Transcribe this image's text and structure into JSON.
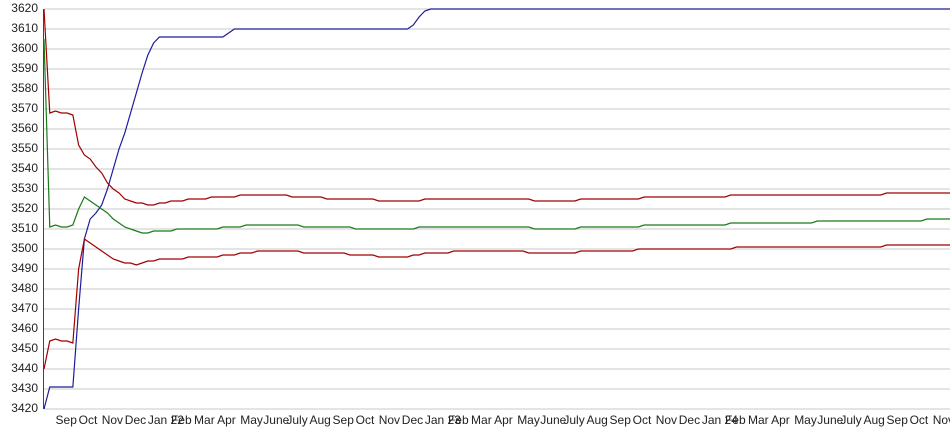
{
  "chart_data": {
    "type": "line",
    "categories": [
      null,
      null,
      "Sep",
      null,
      null,
      null,
      "Oct",
      null,
      null,
      null,
      "Nov",
      null,
      null,
      null,
      "Dec",
      null,
      null,
      null,
      "Jan 22",
      null,
      null,
      null,
      "Feb",
      null,
      null,
      null,
      "Mar",
      null,
      null,
      null,
      "Apr",
      null,
      null,
      null,
      "May",
      null,
      null,
      null,
      "June",
      null,
      null,
      null,
      "July",
      null,
      null,
      null,
      "Aug",
      null,
      null,
      null,
      "Sep",
      null,
      null,
      null,
      "Oct",
      null,
      null,
      null,
      "Nov",
      null,
      null,
      null,
      "Dec",
      null,
      null,
      null,
      "Jan 23",
      null,
      null,
      null,
      "Feb",
      null,
      null,
      null,
      "Mar",
      null,
      null,
      null,
      "Apr",
      null,
      null,
      null,
      "May",
      null,
      null,
      null,
      "June",
      null,
      null,
      null,
      "July",
      null,
      null,
      null,
      "Aug",
      null,
      null,
      null,
      "Sep",
      null,
      null,
      null,
      "Oct",
      null,
      null,
      null,
      "Nov",
      null,
      null,
      null,
      "Dec",
      null,
      null,
      null,
      "Jan 24",
      null,
      null,
      null,
      "Feb",
      null,
      null,
      null,
      "Mar",
      null,
      null,
      null,
      "Apr",
      null,
      null,
      null,
      "May",
      null,
      null,
      null,
      "June",
      null,
      null,
      null,
      "July",
      null,
      null,
      null,
      "Aug",
      null,
      null,
      null,
      "Sep",
      null,
      null,
      null,
      "Oct",
      null,
      null,
      null,
      "Nov",
      null,
      null,
      null
    ],
    "series": [
      {
        "color": "#1c1c9c",
        "values": [
          3420,
          3431,
          3431,
          3431,
          3431,
          3431,
          3470,
          3505,
          3515,
          3518,
          3522,
          3530,
          3540,
          3550,
          3558,
          3568,
          3578,
          3588,
          3597,
          3603,
          3606,
          3606,
          3606,
          3606,
          3606,
          3606,
          3606,
          3606,
          3606,
          3606,
          3606,
          3606,
          3608,
          3610,
          3610,
          3610,
          3610,
          3610,
          3610,
          3610,
          3610,
          3610,
          3610,
          3610,
          3610,
          3610,
          3610,
          3610,
          3610,
          3610,
          3610,
          3610,
          3610,
          3610,
          3610,
          3610,
          3610,
          3610,
          3610,
          3610,
          3610,
          3610,
          3610,
          3610,
          3612,
          3616,
          3619,
          3620,
          3620,
          3620,
          3620,
          3620,
          3620,
          3620,
          3620,
          3620,
          3620,
          3620,
          3620,
          3620,
          3620,
          3620,
          3620,
          3620,
          3620,
          3620,
          3620,
          3620,
          3620,
          3620,
          3620,
          3620,
          3620,
          3620,
          3620,
          3620,
          3620,
          3620,
          3620,
          3620,
          3620,
          3620,
          3620,
          3620,
          3620,
          3620,
          3620,
          3620,
          3620,
          3620,
          3620,
          3620,
          3620,
          3620,
          3620,
          3620,
          3620,
          3620,
          3620,
          3620,
          3620,
          3620,
          3620,
          3620,
          3620,
          3620,
          3620,
          3620,
          3620,
          3620,
          3620,
          3620,
          3620,
          3620,
          3620,
          3620,
          3620,
          3620,
          3620,
          3620,
          3620,
          3620,
          3620,
          3620,
          3620,
          3620,
          3620,
          3620,
          3620,
          3620,
          3620,
          3620,
          3620,
          3620,
          3620,
          3620,
          3620,
          3620
        ]
      },
      {
        "color": "#a00000",
        "values": [
          3620,
          3568,
          3569,
          3568,
          3568,
          3567,
          3552,
          3547,
          3545,
          3541,
          3538,
          3533,
          3530,
          3528,
          3525,
          3524,
          3523,
          3523,
          3522,
          3522,
          3523,
          3523,
          3524,
          3524,
          3524,
          3525,
          3525,
          3525,
          3525,
          3526,
          3526,
          3526,
          3526,
          3526,
          3527,
          3527,
          3527,
          3527,
          3527,
          3527,
          3527,
          3527,
          3527,
          3526,
          3526,
          3526,
          3526,
          3526,
          3526,
          3525,
          3525,
          3525,
          3525,
          3525,
          3525,
          3525,
          3525,
          3525,
          3524,
          3524,
          3524,
          3524,
          3524,
          3524,
          3524,
          3524,
          3525,
          3525,
          3525,
          3525,
          3525,
          3525,
          3525,
          3525,
          3525,
          3525,
          3525,
          3525,
          3525,
          3525,
          3525,
          3525,
          3525,
          3525,
          3525,
          3524,
          3524,
          3524,
          3524,
          3524,
          3524,
          3524,
          3524,
          3525,
          3525,
          3525,
          3525,
          3525,
          3525,
          3525,
          3525,
          3525,
          3525,
          3525,
          3526,
          3526,
          3526,
          3526,
          3526,
          3526,
          3526,
          3526,
          3526,
          3526,
          3526,
          3526,
          3526,
          3526,
          3526,
          3527,
          3527,
          3527,
          3527,
          3527,
          3527,
          3527,
          3527,
          3527,
          3527,
          3527,
          3527,
          3527,
          3527,
          3527,
          3527,
          3527,
          3527,
          3527,
          3527,
          3527,
          3527,
          3527,
          3527,
          3527,
          3527,
          3527,
          3528,
          3528,
          3528,
          3528,
          3528,
          3528,
          3528,
          3528,
          3528,
          3528,
          3528,
          3528
        ]
      },
      {
        "color": "#1a7a1a",
        "values": [
          3605,
          3511,
          3512,
          3511,
          3511,
          3512,
          3520,
          3526,
          3524,
          3522,
          3520,
          3518,
          3515,
          3513,
          3511,
          3510,
          3509,
          3508,
          3508,
          3509,
          3509,
          3509,
          3509,
          3510,
          3510,
          3510,
          3510,
          3510,
          3510,
          3510,
          3510,
          3511,
          3511,
          3511,
          3511,
          3512,
          3512,
          3512,
          3512,
          3512,
          3512,
          3512,
          3512,
          3512,
          3512,
          3511,
          3511,
          3511,
          3511,
          3511,
          3511,
          3511,
          3511,
          3511,
          3510,
          3510,
          3510,
          3510,
          3510,
          3510,
          3510,
          3510,
          3510,
          3510,
          3510,
          3511,
          3511,
          3511,
          3511,
          3511,
          3511,
          3511,
          3511,
          3511,
          3511,
          3511,
          3511,
          3511,
          3511,
          3511,
          3511,
          3511,
          3511,
          3511,
          3511,
          3510,
          3510,
          3510,
          3510,
          3510,
          3510,
          3510,
          3510,
          3511,
          3511,
          3511,
          3511,
          3511,
          3511,
          3511,
          3511,
          3511,
          3511,
          3511,
          3512,
          3512,
          3512,
          3512,
          3512,
          3512,
          3512,
          3512,
          3512,
          3512,
          3512,
          3512,
          3512,
          3512,
          3512,
          3513,
          3513,
          3513,
          3513,
          3513,
          3513,
          3513,
          3513,
          3513,
          3513,
          3513,
          3513,
          3513,
          3513,
          3513,
          3514,
          3514,
          3514,
          3514,
          3514,
          3514,
          3514,
          3514,
          3514,
          3514,
          3514,
          3514,
          3514,
          3514,
          3514,
          3514,
          3514,
          3514,
          3514,
          3515,
          3515,
          3515,
          3515,
          3515
        ]
      },
      {
        "color": "#a00000",
        "values": [
          3440,
          3454,
          3455,
          3454,
          3454,
          3453,
          3490,
          3505,
          3503,
          3501,
          3499,
          3497,
          3495,
          3494,
          3493,
          3493,
          3492,
          3493,
          3494,
          3494,
          3495,
          3495,
          3495,
          3495,
          3495,
          3496,
          3496,
          3496,
          3496,
          3496,
          3496,
          3497,
          3497,
          3497,
          3498,
          3498,
          3498,
          3499,
          3499,
          3499,
          3499,
          3499,
          3499,
          3499,
          3499,
          3498,
          3498,
          3498,
          3498,
          3498,
          3498,
          3498,
          3498,
          3497,
          3497,
          3497,
          3497,
          3497,
          3496,
          3496,
          3496,
          3496,
          3496,
          3496,
          3497,
          3497,
          3498,
          3498,
          3498,
          3498,
          3498,
          3499,
          3499,
          3499,
          3499,
          3499,
          3499,
          3499,
          3499,
          3499,
          3499,
          3499,
          3499,
          3499,
          3498,
          3498,
          3498,
          3498,
          3498,
          3498,
          3498,
          3498,
          3498,
          3499,
          3499,
          3499,
          3499,
          3499,
          3499,
          3499,
          3499,
          3499,
          3499,
          3500,
          3500,
          3500,
          3500,
          3500,
          3500,
          3500,
          3500,
          3500,
          3500,
          3500,
          3500,
          3500,
          3500,
          3500,
          3500,
          3500,
          3501,
          3501,
          3501,
          3501,
          3501,
          3501,
          3501,
          3501,
          3501,
          3501,
          3501,
          3501,
          3501,
          3501,
          3501,
          3501,
          3501,
          3501,
          3501,
          3501,
          3501,
          3501,
          3501,
          3501,
          3501,
          3501,
          3502,
          3502,
          3502,
          3502,
          3502,
          3502,
          3502,
          3502,
          3502,
          3502,
          3502,
          3502
        ]
      }
    ],
    "ylim": [
      3420,
      3620
    ],
    "yticks": [
      3420,
      3430,
      3440,
      3450,
      3460,
      3470,
      3480,
      3490,
      3500,
      3510,
      3520,
      3530,
      3540,
      3550,
      3560,
      3570,
      3580,
      3590,
      3600,
      3610,
      3620
    ],
    "grid": true
  }
}
